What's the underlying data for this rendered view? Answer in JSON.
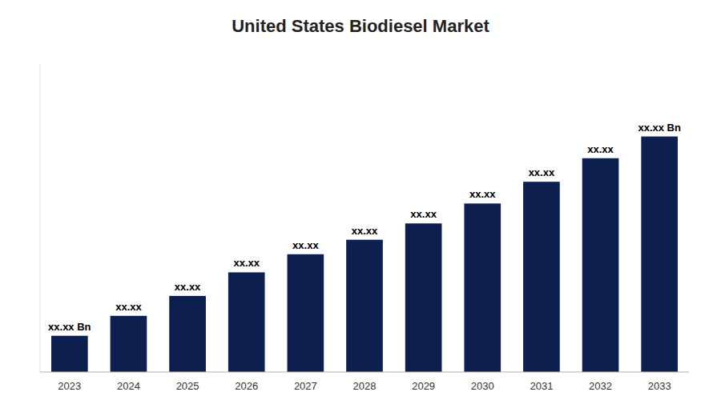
{
  "chart_data": {
    "type": "bar",
    "title": "United States Biodiesel Market",
    "categories": [
      "2023",
      "2024",
      "2025",
      "2026",
      "2027",
      "2028",
      "2029",
      "2030",
      "2031",
      "2032",
      "2033"
    ],
    "values": [
      1.0,
      1.55,
      2.1,
      2.75,
      3.25,
      3.65,
      4.1,
      4.65,
      5.25,
      5.9,
      6.5
    ],
    "data_labels": true,
    "value_labels": [
      "xx.xx Bn",
      "xx.xx",
      "xx.xx",
      "xx.xx",
      "xx.xx",
      "xx.xx",
      "xx.xx",
      "xx.xx",
      "xx.xx",
      "xx.xx",
      "xx.xx Bn"
    ],
    "color": "#0d1f4e",
    "ylim": [
      0,
      8.5
    ],
    "yticks": [],
    "tick_labels": "x",
    "grid": false
  }
}
